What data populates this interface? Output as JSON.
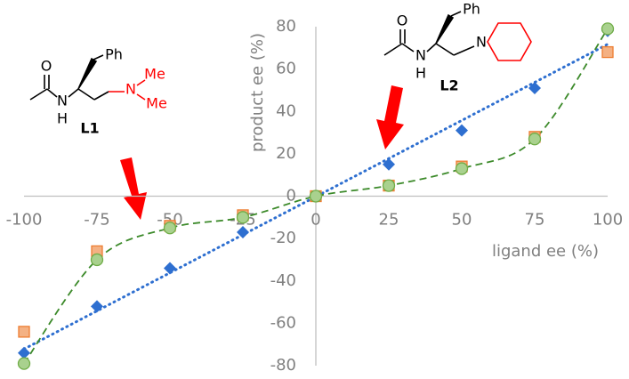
{
  "chart_data": {
    "type": "scatter",
    "x_label": "ligand ee (%)",
    "y_label": "product ee (%)",
    "x": [
      -100,
      -75,
      -50,
      -25,
      0,
      25,
      50,
      75,
      100
    ],
    "series": [
      {
        "color": "#2e6fd0",
        "marker": "diamond",
        "trendline": "linear",
        "values": [
          -74,
          -52,
          -34,
          -17,
          0,
          15,
          31,
          51,
          78
        ]
      },
      {
        "color": "#ed7d31",
        "marker": "square",
        "values": [
          -64,
          -26,
          -14,
          -9,
          0,
          5,
          14,
          28,
          68
        ]
      },
      {
        "color": "#70ad47",
        "marker": "circle",
        "trendline": "curve",
        "values": [
          -79,
          -30,
          -15,
          -10,
          0,
          5,
          13,
          27,
          79
        ]
      }
    ],
    "xlim": [
      -100,
      100
    ],
    "ylim": [
      -80,
      80
    ],
    "xticks": [
      -100,
      -75,
      -50,
      -25,
      0,
      25,
      50,
      75,
      100
    ],
    "yticks": [
      -80,
      -60,
      -40,
      -20,
      0,
      20,
      40,
      60,
      80
    ],
    "structures": [
      {
        "label": "L1",
        "atoms": [
          "O",
          "N",
          "H",
          "Ph",
          "N",
          "Me",
          "Me"
        ]
      },
      {
        "label": "L2",
        "atoms": [
          "O",
          "N",
          "H",
          "Ph",
          "N"
        ]
      }
    ]
  }
}
